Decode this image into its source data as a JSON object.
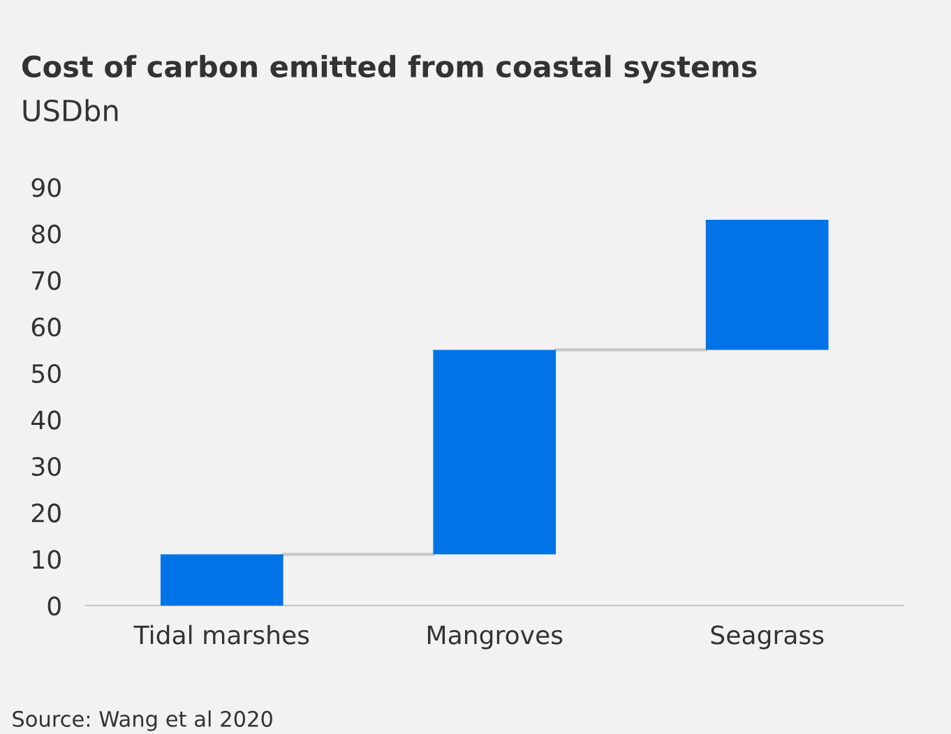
{
  "chart_data": {
    "type": "bar",
    "title": "Cost of carbon emitted from coastal systems",
    "subtitle": "USDbn",
    "categories": [
      "Tidal marshes",
      "Mangroves",
      "Seagrass"
    ],
    "values": [
      11,
      44,
      28
    ],
    "base": [
      0,
      11,
      55
    ],
    "color": "#0073e6",
    "ylim": [
      0,
      90
    ],
    "yticks": [
      0,
      10,
      20,
      30,
      40,
      50,
      60,
      70,
      80,
      90
    ],
    "grid": false,
    "ref_lines": [
      {
        "axis": "y",
        "value": 11,
        "label": null,
        "color": "#c8c8c8"
      },
      {
        "axis": "y",
        "value": 55,
        "label": null,
        "color": "#c8c8c8"
      }
    ],
    "annotations": [
      "Source: Wang et al 2020"
    ]
  }
}
